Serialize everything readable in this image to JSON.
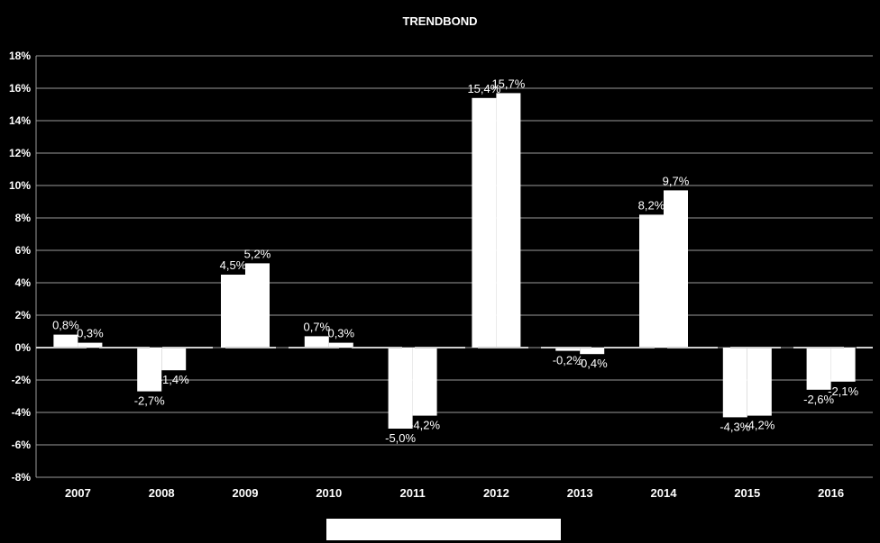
{
  "chart_data": {
    "type": "bar",
    "title": "TRENDBOND",
    "xlabel": "",
    "ylabel": "",
    "ylim": [
      -8,
      18
    ],
    "yticks": [
      18,
      16,
      14,
      12,
      10,
      8,
      6,
      4,
      2,
      0,
      -2,
      -4,
      -6,
      -8
    ],
    "ytick_labels": [
      "18%",
      "16%",
      "14%",
      "12%",
      "10%",
      "8%",
      "6%",
      "4%",
      "2%",
      "0%",
      "-2%",
      "-4%",
      "-6%",
      "-8%"
    ],
    "categories": [
      "2007",
      "2008",
      "2009",
      "2010",
      "2011",
      "2012",
      "2013",
      "2014",
      "2015",
      "2016"
    ],
    "series": [
      {
        "values": [
          0.8,
          -2.7,
          4.5,
          0.7,
          -5.0,
          15.4,
          -0.2,
          8.2,
          -4.3,
          -2.6
        ],
        "labels": [
          "0,8%",
          "-2,7%",
          "4,5%",
          "0,7%",
          "-5,0%",
          "15,4%",
          "-0,2%",
          "8,2%",
          "-4,3%",
          "-2,6%"
        ]
      },
      {
        "values": [
          0.3,
          -1.4,
          5.2,
          0.3,
          -4.2,
          15.7,
          -0.4,
          9.7,
          -4.2,
          -2.1
        ],
        "labels": [
          "0,3%",
          "-1,4%",
          "5,2%",
          "0,3%",
          "-4,2%",
          "15,7%",
          "-0,4%",
          "9,7%",
          "-4,2%",
          "-2,1%"
        ]
      }
    ],
    "grid": true,
    "bar_color": "#ffffff",
    "background": "#000000",
    "legend": {
      "position": "bottom",
      "entries": [
        ""
      ]
    }
  }
}
